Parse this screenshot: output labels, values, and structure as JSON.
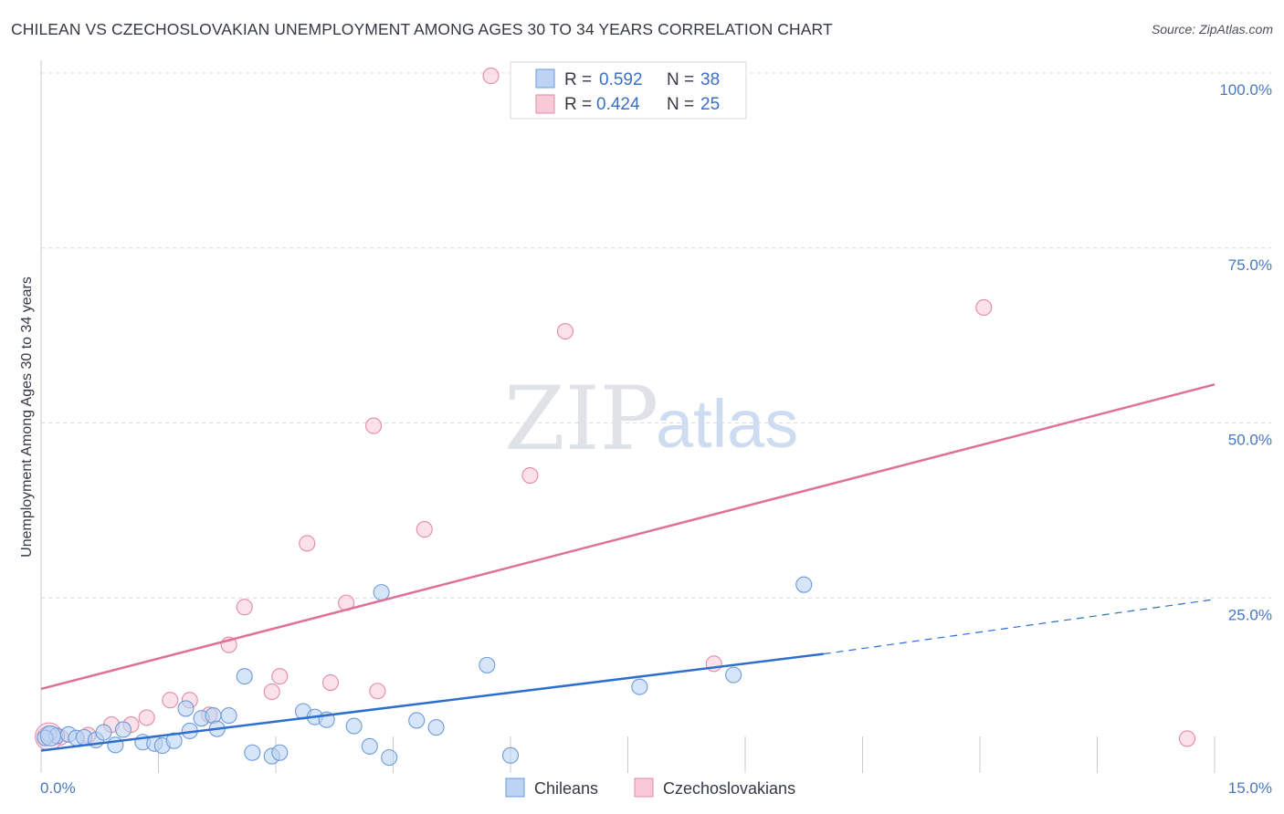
{
  "title": "CHILEAN VS CZECHOSLOVAKIAN UNEMPLOYMENT AMONG AGES 30 TO 34 YEARS CORRELATION CHART",
  "source": "Source: ZipAtlas.com",
  "watermark": {
    "part1": "ZIP",
    "part2": "atlas"
  },
  "colors": {
    "blue_fill": "#bcd3f3",
    "blue_stroke": "#6e9ad8",
    "blue_line": "#2e6fce",
    "pink_fill": "#f8c9d7",
    "pink_stroke": "#e58aa6",
    "pink_line": "#e0709a",
    "grid": "#d9dce1",
    "axis_text": "#4a78c2"
  },
  "legend": {
    "r_label": "R =",
    "n_label": "N =",
    "rows": [
      {
        "r": "0.592",
        "n": "38",
        "series": "Chileans"
      },
      {
        "r": "0.424",
        "n": "25",
        "series": "Czechoslovakians"
      }
    ]
  },
  "chart_data": {
    "type": "scatter",
    "title": "CHILEAN VS CZECHOSLOVAKIAN UNEMPLOYMENT AMONG AGES 30 TO 34 YEARS CORRELATION CHART",
    "xlabel": "",
    "ylabel": "Unemployment Among Ages 30 to 34 years",
    "xlim": [
      0,
      15
    ],
    "ylim": [
      0,
      102
    ],
    "x_tick_labels": [
      "0.0%",
      "15.0%"
    ],
    "y_ticks": [
      25,
      50,
      75,
      100
    ],
    "y_tick_labels": [
      "25.0%",
      "50.0%",
      "75.0%",
      "100.0%"
    ],
    "grid": true,
    "series": [
      {
        "name": "Chileans",
        "r": 0.592,
        "n": 38,
        "trend": {
          "x0": 0.0,
          "y0": 3.2,
          "x1": 10.0,
          "y1": 17.0,
          "dash_to_x": 15.0,
          "dash_to_y": 24.8
        },
        "points": [
          [
            0.1,
            5.6
          ],
          [
            0.2,
            5.3
          ],
          [
            0.35,
            5.5
          ],
          [
            0.45,
            5.0
          ],
          [
            0.55,
            5.1
          ],
          [
            0.7,
            4.7
          ],
          [
            0.8,
            5.8
          ],
          [
            0.95,
            4.0
          ],
          [
            1.05,
            6.2
          ],
          [
            1.3,
            4.4
          ],
          [
            1.45,
            4.2
          ],
          [
            1.55,
            3.9
          ],
          [
            1.7,
            4.6
          ],
          [
            1.85,
            9.2
          ],
          [
            1.9,
            6.0
          ],
          [
            2.05,
            7.8
          ],
          [
            2.2,
            8.2
          ],
          [
            2.25,
            6.3
          ],
          [
            2.4,
            8.2
          ],
          [
            2.6,
            13.8
          ],
          [
            2.7,
            2.9
          ],
          [
            2.95,
            2.4
          ],
          [
            3.05,
            2.9
          ],
          [
            3.35,
            8.8
          ],
          [
            3.5,
            8.0
          ],
          [
            3.65,
            7.6
          ],
          [
            4.0,
            6.7
          ],
          [
            4.2,
            3.8
          ],
          [
            4.35,
            25.8
          ],
          [
            4.45,
            2.2
          ],
          [
            4.8,
            7.5
          ],
          [
            5.05,
            6.5
          ],
          [
            5.7,
            15.4
          ],
          [
            6.0,
            2.5
          ],
          [
            7.65,
            12.3
          ],
          [
            8.85,
            14.0
          ],
          [
            9.75,
            26.9
          ],
          [
            0.05,
            5.0
          ]
        ]
      },
      {
        "name": "Czechoslovakians",
        "r": 0.424,
        "n": 25,
        "trend": {
          "x0": 0.0,
          "y0": 12.0,
          "x1": 15.0,
          "y1": 55.5
        },
        "points": [
          [
            0.05,
            5.3
          ],
          [
            0.25,
            5.1
          ],
          [
            0.6,
            5.4
          ],
          [
            0.9,
            6.9
          ],
          [
            1.15,
            6.9
          ],
          [
            1.35,
            7.9
          ],
          [
            1.65,
            10.4
          ],
          [
            1.9,
            10.4
          ],
          [
            2.15,
            8.3
          ],
          [
            2.4,
            18.3
          ],
          [
            2.6,
            23.7
          ],
          [
            2.95,
            11.6
          ],
          [
            3.05,
            13.8
          ],
          [
            3.4,
            32.8
          ],
          [
            3.7,
            12.9
          ],
          [
            3.9,
            24.3
          ],
          [
            4.3,
            11.7
          ],
          [
            4.25,
            49.6
          ],
          [
            4.9,
            34.8
          ],
          [
            5.75,
            99.6
          ],
          [
            6.25,
            42.5
          ],
          [
            6.7,
            63.1
          ],
          [
            8.6,
            15.6
          ],
          [
            12.05,
            66.5
          ],
          [
            14.65,
            4.9
          ]
        ]
      }
    ]
  }
}
